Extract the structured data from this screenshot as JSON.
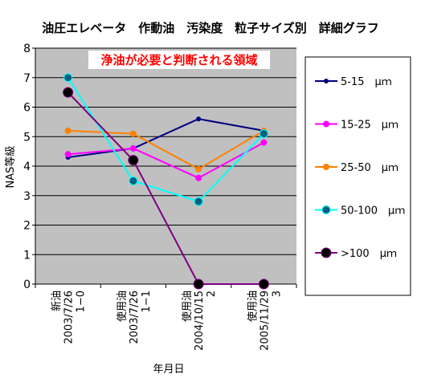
{
  "chart_data": {
    "type": "line",
    "title": "油圧エレベータ　作動油　汚染度　粒子サイズ別　詳細グラフ",
    "ylabel": "NAS等級",
    "xlabel": "年月日",
    "ylim": [
      0,
      8
    ],
    "yticks": [
      "0",
      "1",
      "2",
      "3",
      "4",
      "5",
      "6",
      "7",
      "8"
    ],
    "grid": true,
    "legend_position": "right",
    "annotation": "浄油が必要と判断される領域",
    "categories": [
      {
        "lines": [
          "新油",
          "2003/7/26",
          "1−0"
        ]
      },
      {
        "lines": [
          "使用油",
          "2003/7/26",
          "1−1"
        ]
      },
      {
        "lines": [
          "使用油",
          "2004/10/15",
          "2"
        ]
      },
      {
        "lines": [
          "使用油",
          "2005/11/29",
          "3"
        ]
      }
    ],
    "series": [
      {
        "name": "5-15　μｍ",
        "color": "#000080",
        "values": [
          4.3,
          4.6,
          5.6,
          5.2
        ]
      },
      {
        "name": "15-25　μｍ",
        "color": "#ff00ff",
        "values": [
          4.4,
          4.6,
          3.6,
          4.8
        ]
      },
      {
        "name": "25-50　μｍ",
        "color": "#ff8000",
        "values": [
          5.2,
          5.1,
          3.9,
          5.2
        ]
      },
      {
        "name": "50-100　μｍ",
        "color": "#00ffff",
        "values": [
          7.0,
          3.5,
          2.8,
          5.1
        ]
      },
      {
        "name": ">100　μｍ",
        "color": "#800080",
        "values": [
          6.5,
          4.2,
          0,
          0
        ]
      }
    ],
    "colors": {
      "plot_background": "#c0c0c0",
      "annotation_background": "#ffffff",
      "annotation_text": "#ff0000",
      "marker_50_100": "#006080",
      "marker_over_100": "#000000"
    }
  }
}
